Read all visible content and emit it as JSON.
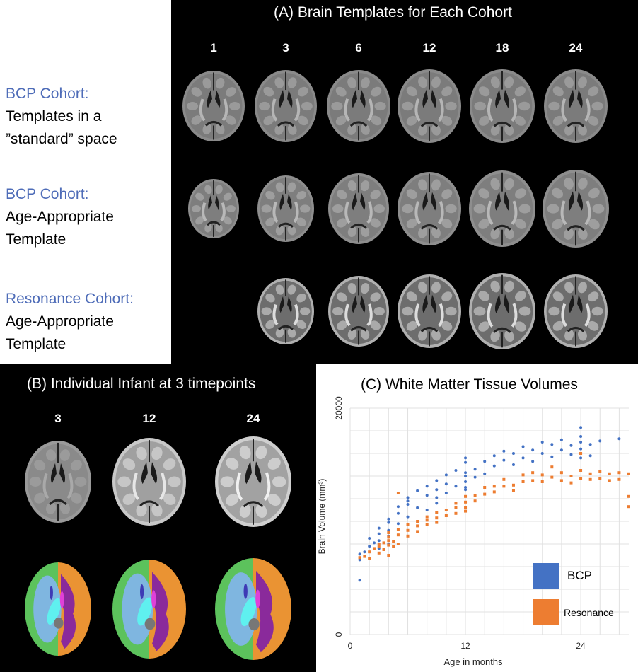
{
  "panel_a": {
    "title": "(A) Brain Templates for Each Cohort",
    "ages": [
      "1",
      "3",
      "6",
      "12",
      "18",
      "24"
    ],
    "rows": [
      {
        "cohort": "BCP Cohort:",
        "desc_line1": "Templates in a",
        "desc_line2": "”standard” space",
        "present": [
          true,
          true,
          true,
          true,
          true,
          true
        ],
        "style": "standard"
      },
      {
        "cohort": "BCP Cohort:",
        "desc_line1": "Age-Appropriate",
        "desc_line2": "Template",
        "present": [
          true,
          true,
          true,
          true,
          true,
          true
        ],
        "style": "age"
      },
      {
        "cohort": "Resonance Cohort:",
        "desc_line1": "Age-Appropriate",
        "desc_line2": "Template",
        "present": [
          false,
          true,
          true,
          true,
          true,
          true
        ],
        "style": "resonance"
      }
    ]
  },
  "panel_b": {
    "title": "(B) Individual Infant at 3 timepoints",
    "ages": [
      "3",
      "12",
      "24"
    ]
  },
  "panel_c": {
    "title": "(C) White Matter Tissue Volumes",
    "ylabel": "Brain Volume (mm³)",
    "xlabel": "Age in months",
    "legend": {
      "bcp": "BCP",
      "resonance": "Resonance"
    }
  },
  "chart_data": {
    "type": "scatter",
    "title": "(C) White Matter Tissue Volumes",
    "xlabel": "Age in months",
    "ylabel": "Brain Volume (mm³)",
    "xlim": [
      0,
      29
    ],
    "ylim": [
      0,
      20000
    ],
    "xticks": [
      "0",
      "12",
      "24"
    ],
    "yticks": [
      "0",
      "20000"
    ],
    "grid": true,
    "legend_position": "bottom-right",
    "colors": {
      "BCP": "#4472c4",
      "Resonance": "#ed7d31"
    },
    "series": [
      {
        "name": "BCP",
        "x": [
          1,
          1,
          1,
          1.5,
          2,
          2,
          2.5,
          3,
          3,
          3,
          3,
          4,
          4,
          4,
          4,
          4,
          5,
          5,
          5,
          6,
          6,
          6,
          6,
          7,
          7,
          8,
          8,
          8,
          9,
          9,
          9,
          9,
          10,
          10,
          10,
          11,
          11,
          12,
          12,
          12,
          12,
          12,
          12,
          12,
          13,
          13,
          14,
          14,
          15,
          15,
          16,
          16,
          17,
          17,
          18,
          18,
          19,
          19,
          20,
          20,
          21,
          21,
          22,
          22,
          23,
          23,
          24,
          24,
          24,
          24,
          24,
          24,
          25,
          25,
          26,
          28
        ],
        "y": [
          6600,
          7100,
          4800,
          7300,
          7800,
          8500,
          8100,
          8900,
          9400,
          7600,
          8300,
          9900,
          10200,
          8700,
          9200,
          8000,
          10700,
          11300,
          9800,
          11500,
          12100,
          10400,
          11800,
          12700,
          11200,
          13100,
          12300,
          11000,
          13600,
          12800,
          12100,
          11600,
          14100,
          13300,
          12500,
          14500,
          13100,
          15200,
          14300,
          13500,
          12800,
          15600,
          14000,
          13000,
          14600,
          13900,
          15300,
          14200,
          15800,
          14900,
          16200,
          15400,
          16000,
          15000,
          16600,
          15600,
          16300,
          15300,
          17000,
          16000,
          16800,
          15700,
          17200,
          16300,
          16700,
          15900,
          18300,
          17500,
          16400,
          15600,
          17000,
          16000,
          16800,
          15800,
          17100,
          17300
        ]
      },
      {
        "name": "Resonance",
        "x": [
          1,
          1.5,
          2,
          2,
          2.5,
          3,
          3,
          3,
          3.5,
          3.5,
          4,
          4,
          4,
          4,
          4,
          4.5,
          4.5,
          5,
          5,
          5,
          5,
          6,
          6,
          6,
          7,
          7,
          7,
          8,
          8,
          8,
          9,
          9,
          9,
          10,
          10,
          11,
          11,
          11,
          12,
          12,
          12,
          12,
          13,
          13,
          14,
          14,
          15,
          15,
          16,
          16,
          17,
          17,
          18,
          18,
          19,
          19,
          20,
          20,
          21,
          21,
          22,
          22,
          23,
          23,
          24,
          24,
          24,
          25,
          25,
          26,
          26,
          27,
          27,
          28,
          28,
          29,
          29,
          29
        ],
        "y": [
          6800,
          6900,
          7300,
          6700,
          7600,
          7800,
          7200,
          8000,
          8100,
          7500,
          8300,
          7900,
          7000,
          8600,
          9000,
          8200,
          7800,
          8800,
          9300,
          8000,
          12500,
          9200,
          9700,
          8700,
          9600,
          10000,
          9100,
          10100,
          9700,
          10400,
          10300,
          10800,
          9900,
          11000,
          10500,
          11200,
          10700,
          11600,
          11700,
          11200,
          12200,
          10900,
          12300,
          11800,
          13000,
          12400,
          12600,
          13100,
          13700,
          13100,
          13200,
          12700,
          14100,
          13500,
          13600,
          14300,
          14100,
          13500,
          14800,
          13900,
          14300,
          13600,
          14000,
          13400,
          14500,
          13800,
          16000,
          14200,
          13700,
          14400,
          13800,
          14200,
          13600,
          14300,
          13700,
          14200,
          12200,
          11300
        ]
      }
    ]
  }
}
